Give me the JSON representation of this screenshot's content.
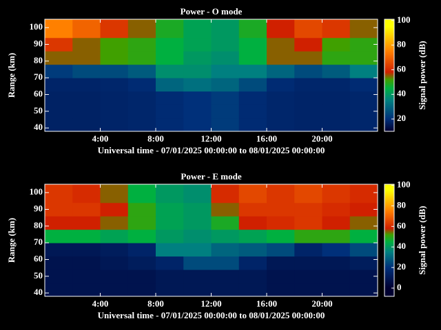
{
  "chart_data": [
    {
      "type": "heatmap",
      "title": "Power - O mode",
      "xlabel": "Universal time - 07/01/2025 00:00:00 to 08/01/2025 00:00:00",
      "ylabel": "Range (km)",
      "colorbar_label": "Signal power (dB)",
      "x": [
        0,
        2,
        4,
        6,
        8,
        10,
        12,
        14,
        16,
        18,
        20,
        22,
        24
      ],
      "y": [
        38,
        46,
        54,
        62,
        70,
        78,
        86,
        94,
        105
      ],
      "z": [
        [
          14,
          14,
          15,
          16,
          18,
          20,
          22,
          18,
          16,
          15,
          15,
          16
        ],
        [
          14,
          14,
          15,
          16,
          18,
          20,
          22,
          18,
          16,
          15,
          15,
          16
        ],
        [
          14,
          14,
          15,
          16,
          18,
          20,
          22,
          18,
          16,
          15,
          15,
          16
        ],
        [
          15,
          15,
          16,
          18,
          30,
          32,
          30,
          25,
          18,
          16,
          16,
          18
        ],
        [
          22,
          25,
          25,
          28,
          38,
          38,
          35,
          35,
          30,
          25,
          28,
          35
        ],
        [
          55,
          55,
          52,
          50,
          45,
          40,
          38,
          45,
          55,
          55,
          50,
          50
        ],
        [
          62,
          55,
          52,
          50,
          45,
          42,
          40,
          45,
          55,
          58,
          52,
          50
        ],
        [
          75,
          70,
          62,
          55,
          48,
          42,
          40,
          48,
          58,
          65,
          62,
          55
        ]
      ],
      "xlim": [
        0,
        24
      ],
      "ylim": [
        38,
        105
      ],
      "xticks": [
        {
          "value": 4,
          "label": "4:00"
        },
        {
          "value": 8,
          "label": "8:00"
        },
        {
          "value": 12,
          "label": "12:00"
        },
        {
          "value": 16,
          "label": "16:00"
        },
        {
          "value": 20,
          "label": "20:00"
        }
      ],
      "yticks": [
        40,
        50,
        60,
        70,
        80,
        90,
        100
      ],
      "clim": [
        10,
        101
      ],
      "cticks": [
        20,
        40,
        60,
        80,
        100
      ],
      "colorscale": [
        [
          0,
          "#000030"
        ],
        [
          20,
          "#00307a"
        ],
        [
          35,
          "#008080"
        ],
        [
          45,
          "#00b040"
        ],
        [
          52,
          "#40a000"
        ],
        [
          58,
          "#d02000"
        ],
        [
          75,
          "#ff8000"
        ],
        [
          95,
          "#ffff00"
        ]
      ]
    },
    {
      "type": "heatmap",
      "title": "Power - E mode",
      "xlabel": "Universal time - 07/01/2025 00:00:00 to 08/01/2025 00:00:00",
      "ylabel": "Range (km)",
      "colorbar_label": "Signal power (dB)",
      "x": [
        0,
        2,
        4,
        6,
        8,
        10,
        12,
        14,
        16,
        18,
        20,
        22,
        24
      ],
      "y": [
        38,
        46,
        54,
        62,
        70,
        78,
        86,
        94,
        105
      ],
      "z": [
        [
          8,
          8,
          8,
          8,
          10,
          10,
          10,
          10,
          8,
          8,
          8,
          8
        ],
        [
          8,
          8,
          8,
          8,
          10,
          10,
          10,
          10,
          8,
          8,
          8,
          8
        ],
        [
          8,
          8,
          10,
          12,
          15,
          25,
          25,
          15,
          10,
          10,
          10,
          12
        ],
        [
          10,
          10,
          12,
          15,
          35,
          35,
          30,
          28,
          25,
          15,
          20,
          25
        ],
        [
          45,
          45,
          42,
          45,
          40,
          38,
          40,
          42,
          45,
          50,
          50,
          45
        ],
        [
          58,
          58,
          55,
          50,
          42,
          40,
          48,
          58,
          60,
          62,
          58,
          55
        ],
        [
          62,
          62,
          58,
          50,
          42,
          40,
          55,
          62,
          62,
          62,
          60,
          58
        ],
        [
          62,
          60,
          55,
          45,
          40,
          38,
          60,
          65,
          62,
          65,
          62,
          60
        ]
      ],
      "xlim": [
        0,
        24
      ],
      "ylim": [
        38,
        105
      ],
      "xticks": [
        {
          "value": 4,
          "label": "4:00"
        },
        {
          "value": 8,
          "label": "8:00"
        },
        {
          "value": 12,
          "label": "12:00"
        },
        {
          "value": 16,
          "label": "16:00"
        },
        {
          "value": 20,
          "label": "20:00"
        }
      ],
      "yticks": [
        40,
        50,
        60,
        70,
        80,
        90,
        100
      ],
      "clim": [
        -8,
        101
      ],
      "cticks": [
        0,
        20,
        40,
        60,
        80,
        100
      ],
      "colorscale": [
        [
          0,
          "#000030"
        ],
        [
          20,
          "#00307a"
        ],
        [
          35,
          "#008080"
        ],
        [
          45,
          "#00b040"
        ],
        [
          52,
          "#40a000"
        ],
        [
          58,
          "#d02000"
        ],
        [
          75,
          "#ff8000"
        ],
        [
          95,
          "#ffff00"
        ]
      ]
    }
  ]
}
